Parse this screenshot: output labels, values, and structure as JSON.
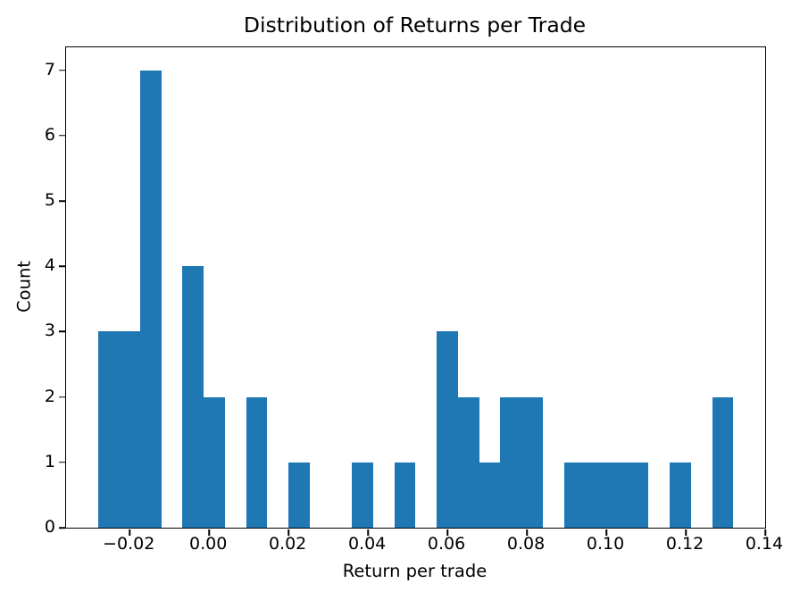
{
  "figure": {
    "background_color": "#ffffff",
    "text_color": "#000000"
  },
  "chart_data": {
    "type": "bar",
    "subtype": "histogram",
    "title": "Distribution of Returns per Trade",
    "xlabel": "Return per trade",
    "ylabel": "Count",
    "bar_color": "#1f77b4",
    "axis_color": "#000000",
    "grid": false,
    "legend": null,
    "xlim": [
      -0.036,
      0.14
    ],
    "ylim": [
      0,
      7.35
    ],
    "bin_start": -0.028,
    "bin_width": 0.0053333,
    "counts": [
      3,
      3,
      7,
      0,
      4,
      2,
      0,
      2,
      0,
      1,
      0,
      0,
      1,
      0,
      1,
      0,
      3,
      2,
      1,
      2,
      2,
      0,
      1,
      1,
      1,
      1,
      0,
      1,
      0,
      2
    ],
    "total_trades": 41,
    "x_ticks": {
      "values": [
        -0.02,
        0.0,
        0.02,
        0.04,
        0.06,
        0.08,
        0.1,
        0.12,
        0.14
      ],
      "labels": [
        "−0.02",
        "0.00",
        "0.02",
        "0.04",
        "0.06",
        "0.08",
        "0.10",
        "0.12",
        "0.14"
      ]
    },
    "y_ticks": {
      "values": [
        0,
        1,
        2,
        3,
        4,
        5,
        6,
        7
      ],
      "labels": [
        "0",
        "1",
        "2",
        "3",
        "4",
        "5",
        "6",
        "7"
      ]
    }
  }
}
